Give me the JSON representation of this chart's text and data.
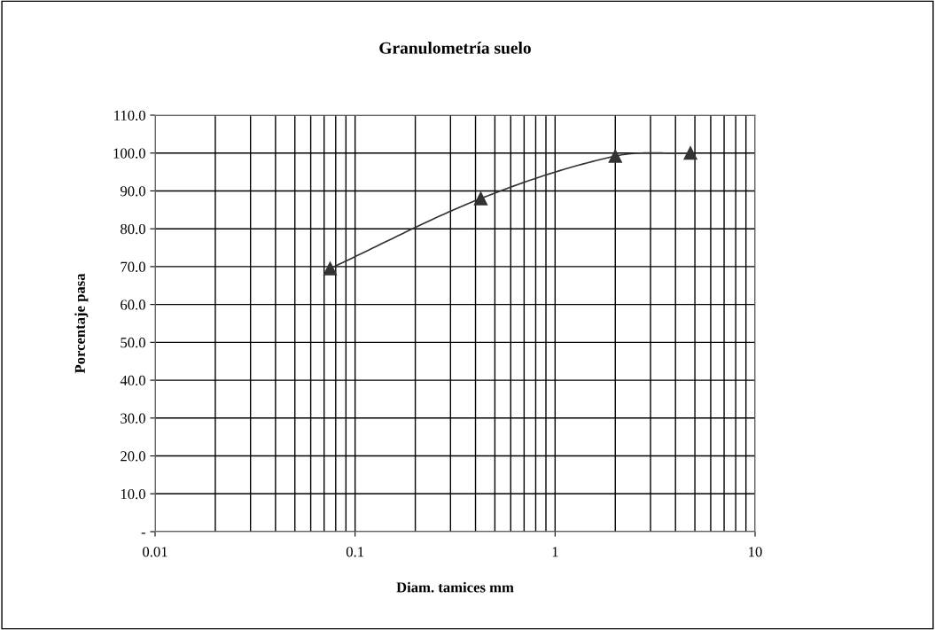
{
  "chart_data": {
    "type": "line",
    "title": "Granulometría suelo",
    "xlabel": "Diam. tamices mm",
    "ylabel": "Porcentaje pasa",
    "x": [
      0.075,
      0.425,
      2.0,
      4.75
    ],
    "series": [
      {
        "color": "#333333",
        "values": [
          69.5,
          88.0,
          99.2,
          100.0
        ]
      }
    ],
    "log": "x",
    "xlim": [
      0.01,
      10
    ],
    "xticks": [
      0.01,
      0.1,
      1,
      10
    ],
    "ylim": [
      0,
      110
    ],
    "yticks": [
      {
        "value": 0,
        "label": "-"
      },
      {
        "value": 10,
        "label": "10.0"
      },
      {
        "value": 20,
        "label": "20.0"
      },
      {
        "value": 30,
        "label": "30.0"
      },
      {
        "value": 40,
        "label": "40.0"
      },
      {
        "value": 50,
        "label": "50.0"
      },
      {
        "value": 60,
        "label": "60.0"
      },
      {
        "value": 70,
        "label": "70.0"
      },
      {
        "value": 80,
        "label": "80.0"
      },
      {
        "value": 90,
        "label": "90.0"
      },
      {
        "value": 100,
        "label": "100.0"
      },
      {
        "value": 110,
        "label": "110.0"
      }
    ],
    "grid": true,
    "marker": "triangle",
    "line_style": "solid"
  }
}
